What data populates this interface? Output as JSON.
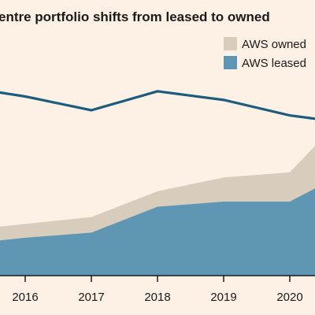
{
  "chart_data": {
    "type": "area",
    "title": "entre portfolio shifts from leased to owned",
    "x": [
      2015.5,
      2016,
      2017,
      2018,
      2019,
      2020,
      2020.4
    ],
    "xticks": [
      "2016",
      "2017",
      "2018",
      "2019",
      "2020"
    ],
    "series": [
      {
        "name": "AWS leased",
        "kind": "area",
        "values": [
          20,
          22,
          25,
          40,
          43,
          43,
          51
        ]
      },
      {
        "name": "AWS owned",
        "kind": "area",
        "stacked_on": "AWS leased",
        "values": [
          8,
          8,
          9,
          9,
          14,
          17,
          25
        ]
      },
      {
        "name": "",
        "kind": "line",
        "values": [
          107,
          104,
          96,
          107,
          102,
          93,
          91
        ]
      }
    ],
    "ylim": [
      0,
      160
    ],
    "legend_position": "top-right",
    "grid": false,
    "colors": {
      "AWS leased": "#5f96b3",
      "AWS owned": "#d8ccbd",
      "line": "#1e5c7e",
      "background": "#fdf1e5",
      "axis": "#1a1a1a"
    }
  }
}
